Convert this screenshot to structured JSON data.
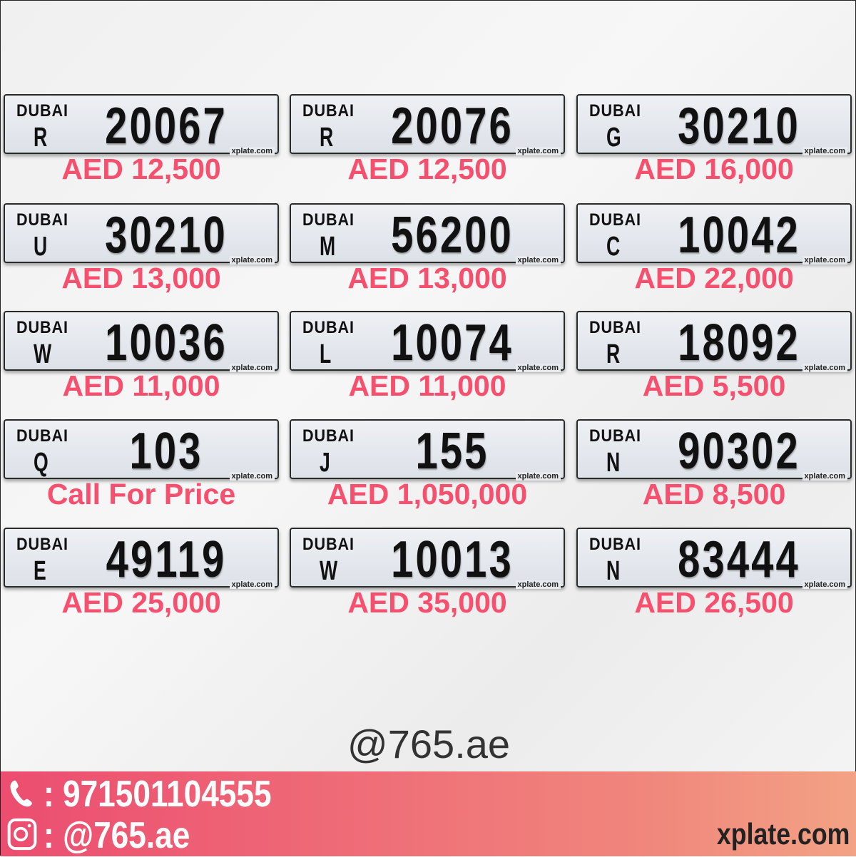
{
  "plates": [
    {
      "emirate": "DUBAI",
      "code": "R",
      "number": "20067",
      "price": "AED 12,500",
      "watermark": "xplate.com"
    },
    {
      "emirate": "DUBAI",
      "code": "R",
      "number": "20076",
      "price": "AED 12,500",
      "watermark": "xplate.com"
    },
    {
      "emirate": "DUBAI",
      "code": "G",
      "number": "30210",
      "price": "AED 16,000",
      "watermark": "xplate.com"
    },
    {
      "emirate": "DUBAI",
      "code": "U",
      "number": "30210",
      "price": "AED 13,000",
      "watermark": "xplate.com"
    },
    {
      "emirate": "DUBAI",
      "code": "M",
      "number": "56200",
      "price": "AED 13,000",
      "watermark": "xplate.com"
    },
    {
      "emirate": "DUBAI",
      "code": "C",
      "number": "10042",
      "price": "AED 22,000",
      "watermark": "xplate.com"
    },
    {
      "emirate": "DUBAI",
      "code": "W",
      "number": "10036",
      "price": "AED 11,000",
      "watermark": "xplate.com"
    },
    {
      "emirate": "DUBAI",
      "code": "L",
      "number": "10074",
      "price": "AED 11,000",
      "watermark": "xplate.com"
    },
    {
      "emirate": "DUBAI",
      "code": "R",
      "number": "18092",
      "price": "AED 5,500",
      "watermark": "xplate.com"
    },
    {
      "emirate": "DUBAI",
      "code": "Q",
      "number": "103",
      "price": "Call For Price",
      "watermark": "xplate.com"
    },
    {
      "emirate": "DUBAI",
      "code": "J",
      "number": "155",
      "price": "AED 1,050,000",
      "watermark": "xplate.com"
    },
    {
      "emirate": "DUBAI",
      "code": "N",
      "number": "90302",
      "price": "AED 8,500",
      "watermark": "xplate.com"
    },
    {
      "emirate": "DUBAI",
      "code": "E",
      "number": "49119",
      "price": "AED 25,000",
      "watermark": "xplate.com"
    },
    {
      "emirate": "DUBAI",
      "code": "W",
      "number": "10013",
      "price": "AED 35,000",
      "watermark": "xplate.com"
    },
    {
      "emirate": "DUBAI",
      "code": "N",
      "number": "83444",
      "price": "AED 26,500",
      "watermark": "xplate.com"
    }
  ],
  "handle": "@765.ae",
  "footer": {
    "phone": ": 971501104555",
    "instagram": ": @765.ae",
    "site": "xplate.com",
    "phone_icon": "phone-icon",
    "instagram_icon": "instagram-icon"
  },
  "colors": {
    "price": "#f7506f",
    "footer_start": "#ec4d70",
    "footer_end": "#f3a285"
  }
}
